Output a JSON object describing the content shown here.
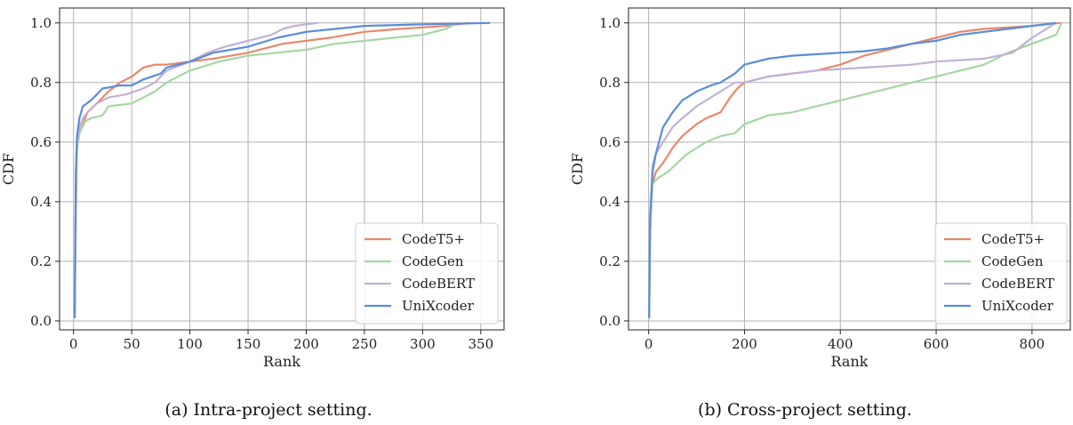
{
  "colors": {
    "CodeT5+": "#e8896b",
    "CodeGen": "#a7d6a4",
    "CodeBERT": "#c2b1d6",
    "UniXcoder": "#5b8dd9"
  },
  "chart_data": [
    {
      "type": "line",
      "title": "",
      "caption": "(a) Intra-project setting.",
      "xlabel": "Rank",
      "ylabel": "CDF",
      "xlim": [
        -12,
        370
      ],
      "ylim": [
        -0.03,
        1.05
      ],
      "xticks": [
        0,
        50,
        100,
        150,
        200,
        250,
        300,
        350
      ],
      "yticks": [
        0.0,
        0.2,
        0.4,
        0.6,
        0.8,
        1.0
      ],
      "xtick_labels": [
        "0",
        "50",
        "100",
        "150",
        "200",
        "250",
        "300",
        "350"
      ],
      "ytick_labels": [
        "0.0",
        "0.2",
        "0.4",
        "0.6",
        "0.8",
        "1.0"
      ],
      "grid": true,
      "legend_position": "bottom-right",
      "series": [
        {
          "name": "CodeT5+",
          "x": [
            1,
            2,
            3,
            5,
            8,
            12,
            20,
            30,
            40,
            50,
            60,
            70,
            80,
            100,
            120,
            150,
            180,
            200,
            220,
            250,
            280,
            300,
            320,
            340
          ],
          "y": [
            0.01,
            0.35,
            0.58,
            0.63,
            0.66,
            0.7,
            0.73,
            0.77,
            0.8,
            0.82,
            0.85,
            0.86,
            0.86,
            0.87,
            0.88,
            0.9,
            0.93,
            0.94,
            0.95,
            0.97,
            0.98,
            0.985,
            0.99,
            1.0
          ]
        },
        {
          "name": "CodeGen",
          "x": [
            1,
            2,
            3,
            5,
            10,
            15,
            25,
            30,
            50,
            60,
            70,
            80,
            100,
            125,
            150,
            175,
            200,
            225,
            250,
            275,
            300,
            320,
            330
          ],
          "y": [
            0.01,
            0.44,
            0.58,
            0.63,
            0.67,
            0.68,
            0.69,
            0.72,
            0.73,
            0.75,
            0.77,
            0.8,
            0.84,
            0.87,
            0.89,
            0.9,
            0.91,
            0.93,
            0.94,
            0.95,
            0.96,
            0.98,
            1.0
          ]
        },
        {
          "name": "CodeBERT",
          "x": [
            1,
            2,
            3,
            5,
            8,
            12,
            20,
            30,
            45,
            60,
            70,
            80,
            100,
            115,
            130,
            150,
            170,
            180,
            190,
            200,
            210
          ],
          "y": [
            0.01,
            0.42,
            0.6,
            0.65,
            0.68,
            0.7,
            0.73,
            0.75,
            0.76,
            0.78,
            0.8,
            0.84,
            0.87,
            0.9,
            0.92,
            0.94,
            0.96,
            0.98,
            0.99,
            0.995,
            1.0
          ]
        },
        {
          "name": "UniXcoder",
          "x": [
            1,
            2,
            3,
            5,
            8,
            15,
            20,
            25,
            40,
            50,
            60,
            75,
            80,
            90,
            100,
            120,
            150,
            175,
            200,
            225,
            250,
            300,
            358
          ],
          "y": [
            0.01,
            0.5,
            0.62,
            0.68,
            0.72,
            0.74,
            0.76,
            0.78,
            0.79,
            0.79,
            0.81,
            0.83,
            0.85,
            0.86,
            0.87,
            0.9,
            0.92,
            0.95,
            0.97,
            0.98,
            0.99,
            0.995,
            1.0
          ]
        }
      ]
    },
    {
      "type": "line",
      "title": "",
      "caption": "(b) Cross-project setting.",
      "xlabel": "Rank",
      "ylabel": "CDF",
      "xlim": [
        -42,
        880
      ],
      "ylim": [
        -0.03,
        1.05
      ],
      "xticks": [
        0,
        200,
        400,
        600,
        800
      ],
      "yticks": [
        0.0,
        0.2,
        0.4,
        0.6,
        0.8,
        1.0
      ],
      "xtick_labels": [
        "0",
        "200",
        "400",
        "600",
        "800"
      ],
      "ytick_labels": [
        "0.0",
        "0.2",
        "0.4",
        "0.6",
        "0.8",
        "1.0"
      ],
      "grid": true,
      "legend_position": "bottom-right",
      "series": [
        {
          "name": "CodeT5+",
          "x": [
            1,
            3,
            8,
            15,
            30,
            50,
            70,
            100,
            120,
            150,
            170,
            185,
            200,
            250,
            300,
            350,
            400,
            450,
            500,
            550,
            600,
            650,
            700,
            800,
            860
          ],
          "y": [
            0.01,
            0.3,
            0.46,
            0.5,
            0.53,
            0.58,
            0.62,
            0.66,
            0.68,
            0.7,
            0.75,
            0.78,
            0.8,
            0.82,
            0.83,
            0.84,
            0.86,
            0.89,
            0.91,
            0.93,
            0.95,
            0.97,
            0.98,
            0.99,
            1.0
          ]
        },
        {
          "name": "CodeGen",
          "x": [
            1,
            3,
            8,
            20,
            40,
            60,
            80,
            100,
            120,
            150,
            180,
            200,
            250,
            300,
            350,
            400,
            450,
            500,
            550,
            600,
            650,
            700,
            750,
            800,
            850,
            862
          ],
          "y": [
            0.01,
            0.3,
            0.46,
            0.48,
            0.5,
            0.53,
            0.56,
            0.58,
            0.6,
            0.62,
            0.63,
            0.66,
            0.69,
            0.7,
            0.72,
            0.74,
            0.76,
            0.78,
            0.8,
            0.82,
            0.84,
            0.86,
            0.9,
            0.93,
            0.96,
            1.0
          ]
        },
        {
          "name": "CodeBERT",
          "x": [
            1,
            3,
            8,
            15,
            30,
            50,
            70,
            100,
            130,
            160,
            180,
            200,
            250,
            300,
            350,
            400,
            450,
            500,
            550,
            600,
            700,
            760,
            800,
            850
          ],
          "y": [
            0.01,
            0.32,
            0.52,
            0.56,
            0.6,
            0.65,
            0.68,
            0.72,
            0.75,
            0.78,
            0.8,
            0.8,
            0.82,
            0.83,
            0.84,
            0.845,
            0.85,
            0.855,
            0.86,
            0.87,
            0.88,
            0.9,
            0.95,
            1.0
          ]
        },
        {
          "name": "UniXcoder",
          "x": [
            1,
            3,
            8,
            15,
            30,
            50,
            70,
            100,
            130,
            150,
            180,
            200,
            250,
            300,
            350,
            400,
            450,
            500,
            550,
            600,
            650,
            700,
            750,
            800,
            850
          ],
          "y": [
            0.01,
            0.35,
            0.5,
            0.56,
            0.65,
            0.7,
            0.74,
            0.77,
            0.79,
            0.8,
            0.83,
            0.86,
            0.88,
            0.89,
            0.895,
            0.9,
            0.905,
            0.915,
            0.93,
            0.94,
            0.96,
            0.97,
            0.98,
            0.99,
            1.0
          ]
        }
      ]
    }
  ]
}
